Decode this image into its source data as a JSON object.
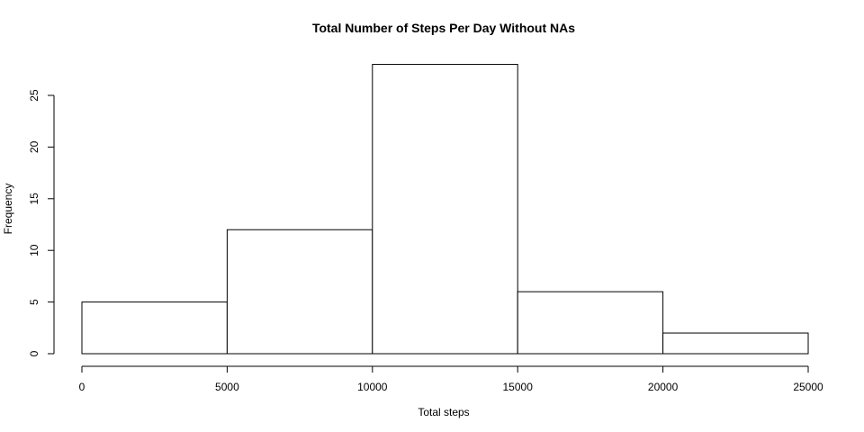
{
  "chart_data": {
    "type": "histogram",
    "title": "Total Number of Steps Per Day Without NAs",
    "xlabel": "Total steps",
    "ylabel": "Frequency",
    "bins": [
      {
        "start": 0,
        "end": 5000,
        "count": 5
      },
      {
        "start": 5000,
        "end": 10000,
        "count": 12
      },
      {
        "start": 10000,
        "end": 15000,
        "count": 28
      },
      {
        "start": 15000,
        "end": 20000,
        "count": 6
      },
      {
        "start": 20000,
        "end": 25000,
        "count": 2
      }
    ],
    "xlim": [
      0,
      25000
    ],
    "ylim": [
      0,
      28
    ],
    "x_ticks": [
      0,
      5000,
      10000,
      15000,
      20000,
      25000
    ],
    "y_ticks": [
      0,
      5,
      10,
      15,
      20,
      25
    ],
    "grid": false,
    "colors": {
      "bar_fill": "#ffffff",
      "bar_stroke": "#000000"
    }
  }
}
